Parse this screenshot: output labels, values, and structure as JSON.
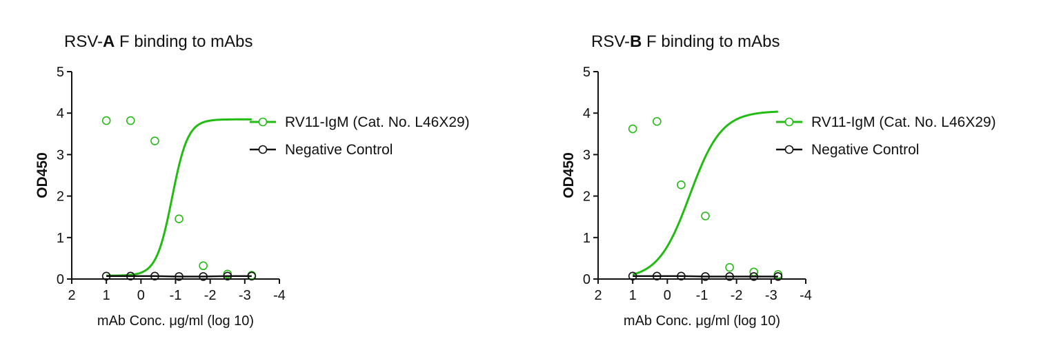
{
  "colors": {
    "fit": "#22bb11",
    "control": "#111111",
    "axis": "#111111"
  },
  "chart_data": [
    {
      "type": "scatter",
      "title_prefix": "RSV-",
      "title_bold": "A",
      "title_suffix": " F binding to mAbs",
      "xlabel": "mAb Conc. μg/ml (log 10)",
      "ylabel": "OD450",
      "xlim": [
        2,
        -4
      ],
      "ylim": [
        0,
        5
      ],
      "x_ticks": [
        "2",
        "1",
        "0",
        "-1",
        "-2",
        "-3",
        "-4"
      ],
      "y_ticks": [
        "0",
        "1",
        "2",
        "3",
        "4",
        "5"
      ],
      "legend_position": "right",
      "series": [
        {
          "name": "RV11-IgM (Cat. No. L46X29)",
          "color": "#22bb11",
          "x": [
            1,
            0.3,
            -0.4,
            -1.1,
            -1.8,
            -2.5,
            -3.2
          ],
          "y": [
            3.82,
            3.82,
            3.33,
            1.45,
            0.32,
            0.12,
            0.09
          ],
          "fit": {
            "bottom": 0.08,
            "top": 3.85,
            "log_ec50": -0.9,
            "hill": -1.9,
            "x_from": 1,
            "x_to": -3.2
          }
        },
        {
          "name": "Negative Control",
          "color": "#111111",
          "x": [
            1,
            0.3,
            -0.4,
            -1.1,
            -1.8,
            -2.5,
            -3.2
          ],
          "y": [
            0.07,
            0.07,
            0.07,
            0.06,
            0.06,
            0.07,
            0.07
          ]
        }
      ]
    },
    {
      "type": "scatter",
      "title_prefix": "RSV-",
      "title_bold": "B",
      "title_suffix": " F binding to mAbs",
      "xlabel": "mAb Conc. μg/ml (log 10)",
      "ylabel": "OD450",
      "xlim": [
        2,
        -4
      ],
      "ylim": [
        0,
        5
      ],
      "x_ticks": [
        "2",
        "1",
        "0",
        "-1",
        "-2",
        "-3",
        "-4"
      ],
      "y_ticks": [
        "0",
        "1",
        "2",
        "3",
        "4",
        "5"
      ],
      "legend_position": "right",
      "series": [
        {
          "name": "RV11-IgM (Cat. No. L46X29)",
          "color": "#22bb11",
          "x": [
            1,
            0.3,
            -0.4,
            -1.1,
            -1.8,
            -2.5,
            -3.2
          ],
          "y": [
            3.62,
            3.8,
            2.27,
            1.52,
            0.28,
            0.17,
            0.11
          ],
          "fit": {
            "bottom": 0.0,
            "top": 4.05,
            "log_ec50": -0.65,
            "hill": -0.95,
            "x_from": 1,
            "x_to": -3.2
          }
        },
        {
          "name": "Negative Control",
          "color": "#111111",
          "x": [
            1,
            0.3,
            -0.4,
            -1.1,
            -1.8,
            -2.5,
            -3.2
          ],
          "y": [
            0.07,
            0.07,
            0.07,
            0.06,
            0.06,
            0.06,
            0.06
          ]
        }
      ]
    }
  ]
}
